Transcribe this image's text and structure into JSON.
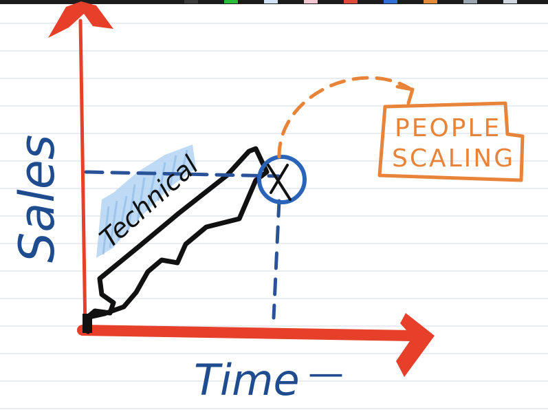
{
  "labels": {
    "y_axis": "Sales",
    "x_axis": "Time",
    "x_axis_suffix": "—",
    "shaded_region": "Technical",
    "callout_line1": "PEOPLE",
    "callout_line2": "SCALING"
  },
  "colors": {
    "axis": "#e6402a",
    "axis_text": "#1f4b8f",
    "dashed_guides": "#2a5298",
    "marker_circle": "#2a64b8",
    "curve": "#111111",
    "shading": "#a9cdf2",
    "callout": "#e8833a",
    "ruled_lines": "#e2e6ee"
  },
  "toolbar_swatches": [
    "#3a3a3a",
    "#2bbd3a",
    "#cfe3f5",
    "#f2c6d0",
    "#e04a3a",
    "#2f6fd6",
    "#e08a3a",
    "#9aa3b0",
    "#cfd6e0"
  ]
}
